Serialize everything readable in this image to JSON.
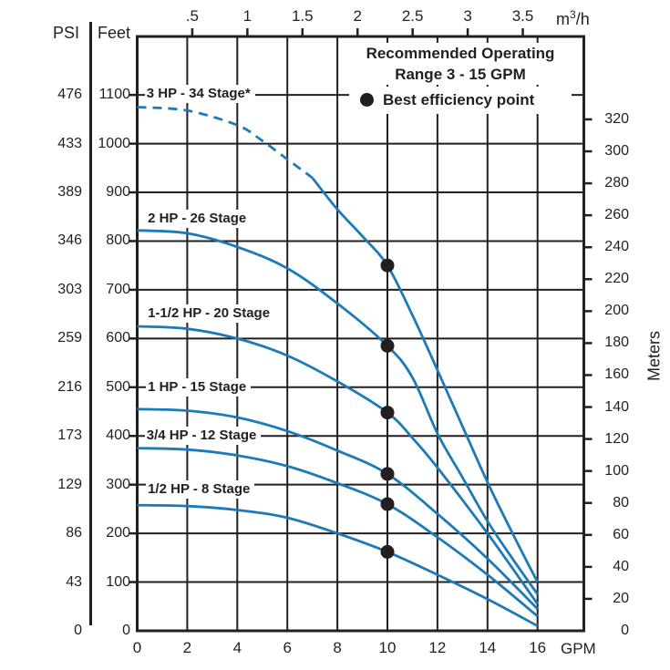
{
  "chart_data": {
    "type": "line",
    "title_lines": [
      "Recommended Operating",
      "Range 3 - 15 GPM"
    ],
    "legend": {
      "marker": "best-efficiency-dot",
      "label": "Best efficiency point"
    },
    "colors": {
      "curve": "#1d7ab8",
      "ink": "#231f20",
      "background": "#ffffff"
    },
    "axes": {
      "bottom": {
        "unit": "GPM",
        "ticks": [
          0,
          2,
          4,
          6,
          8,
          10,
          12,
          14,
          16
        ],
        "range_gpm": [
          0,
          17.85
        ]
      },
      "top": {
        "unit": "m3/h",
        "unit_prefix": "m",
        "unit_sup": "3",
        "unit_suffix": "/h",
        "ticks": [
          0.5,
          1,
          1.5,
          2,
          2.5,
          3,
          3.5
        ]
      },
      "left_feet": {
        "unit": "Feet",
        "ticks": [
          0,
          100,
          200,
          300,
          400,
          500,
          600,
          700,
          800,
          900,
          1000,
          1100
        ],
        "range_feet": [
          0,
          1220
        ]
      },
      "left_psi": {
        "unit": "PSI",
        "labels": [
          "0",
          "43",
          "86",
          "129",
          "173",
          "216",
          "259",
          "303",
          "346",
          "389",
          "433",
          "476"
        ]
      },
      "right_meters": {
        "unit": "Meters",
        "ticks": [
          0,
          20,
          40,
          60,
          80,
          100,
          120,
          140,
          160,
          180,
          200,
          220,
          240,
          260,
          280,
          300,
          320
        ]
      }
    },
    "series": [
      {
        "label": "3 HP - 34 Stage*",
        "label_pos": [
          0.3,
          1103
        ],
        "dash_split_gpm": 7,
        "points": [
          [
            0,
            1075
          ],
          [
            2,
            1068
          ],
          [
            4,
            1038
          ],
          [
            5,
            1006
          ],
          [
            6,
            968
          ],
          [
            7,
            930
          ],
          [
            8,
            865
          ],
          [
            9,
            810
          ],
          [
            10,
            750
          ],
          [
            11,
            648
          ],
          [
            12,
            535
          ],
          [
            13,
            420
          ],
          [
            14,
            305
          ],
          [
            15,
            200
          ],
          [
            16,
            100
          ]
        ],
        "best_efficiency_point": [
          10,
          750
        ]
      },
      {
        "label": "2 HP - 26 Stage",
        "label_pos": [
          0.35,
          845
        ],
        "dash_split_gpm": null,
        "points": [
          [
            0,
            822
          ],
          [
            2,
            816
          ],
          [
            4,
            788
          ],
          [
            6,
            744
          ],
          [
            8,
            672
          ],
          [
            10,
            585
          ],
          [
            11,
            520
          ],
          [
            12,
            405
          ],
          [
            13,
            315
          ],
          [
            14,
            225
          ],
          [
            15,
            148
          ],
          [
            16,
            75
          ]
        ],
        "best_efficiency_point": [
          10,
          585
        ]
      },
      {
        "label": "1-1/2 HP - 20 Stage",
        "label_pos": [
          0.35,
          652
        ],
        "dash_split_gpm": null,
        "points": [
          [
            0,
            625
          ],
          [
            2,
            620
          ],
          [
            4,
            600
          ],
          [
            6,
            565
          ],
          [
            8,
            512
          ],
          [
            10,
            448
          ],
          [
            11,
            396
          ],
          [
            12,
            335
          ],
          [
            14,
            200
          ],
          [
            16,
            55
          ]
        ],
        "best_efficiency_point": [
          10,
          448
        ]
      },
      {
        "label": "1 HP - 15 Stage",
        "label_pos": [
          0.35,
          500
        ],
        "dash_split_gpm": null,
        "points": [
          [
            0,
            455
          ],
          [
            2,
            452
          ],
          [
            4,
            438
          ],
          [
            6,
            410
          ],
          [
            8,
            370
          ],
          [
            10,
            322
          ],
          [
            12,
            240
          ],
          [
            14,
            148
          ],
          [
            16,
            45
          ]
        ],
        "best_efficiency_point": [
          10,
          322
        ]
      },
      {
        "label": "3/4 HP - 12 Stage",
        "label_pos": [
          0.3,
          400
        ],
        "dash_split_gpm": null,
        "points": [
          [
            0,
            375
          ],
          [
            2,
            372
          ],
          [
            4,
            360
          ],
          [
            6,
            338
          ],
          [
            8,
            303
          ],
          [
            10,
            260
          ],
          [
            12,
            192
          ],
          [
            14,
            115
          ],
          [
            16,
            30
          ]
        ],
        "best_efficiency_point": [
          10,
          260
        ]
      },
      {
        "label": "1/2 HP - 8 Stage",
        "label_pos": [
          0.35,
          290
        ],
        "dash_split_gpm": null,
        "points": [
          [
            0,
            258
          ],
          [
            2,
            256
          ],
          [
            4,
            248
          ],
          [
            6,
            232
          ],
          [
            8,
            200
          ],
          [
            10,
            162
          ],
          [
            12,
            115
          ],
          [
            14,
            65
          ],
          [
            16,
            10
          ]
        ],
        "best_efficiency_point": [
          10,
          162
        ]
      }
    ]
  }
}
